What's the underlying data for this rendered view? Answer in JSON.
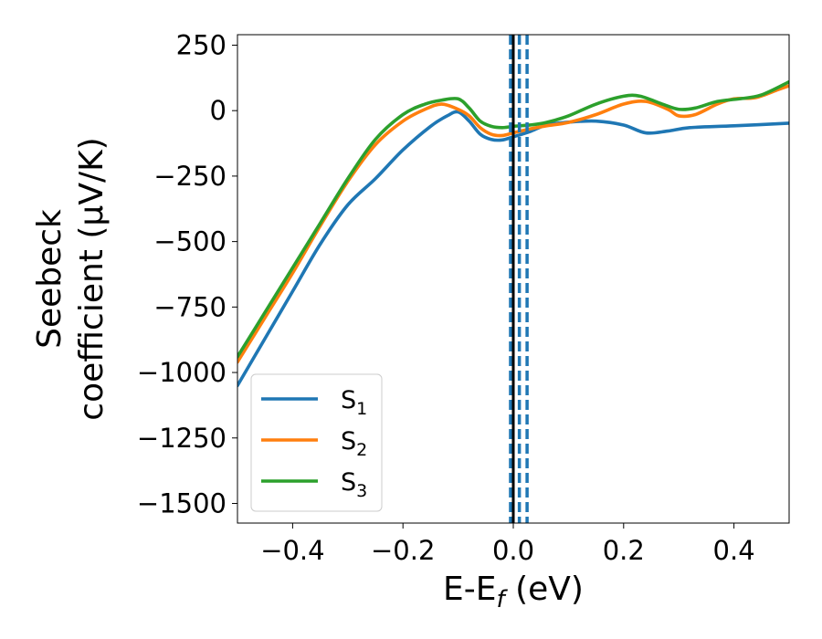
{
  "chart_data": {
    "type": "line",
    "title": "",
    "xlabel": {
      "main": "E-E",
      "sub": "f",
      "unit": " (eV)"
    },
    "ylabel": {
      "line1": "Seebeck",
      "line2": "coefficient  (μV/K)"
    },
    "xlim": [
      -0.5,
      0.5
    ],
    "ylim": [
      -1575,
      290
    ],
    "xticks": [
      -0.4,
      -0.2,
      0.0,
      0.2,
      0.4
    ],
    "xtick_labels": [
      "−0.4",
      "−0.2",
      "0.0",
      "0.2",
      "0.4"
    ],
    "yticks": [
      250,
      0,
      -250,
      -500,
      -750,
      -1000,
      -1250,
      -1500
    ],
    "ytick_labels": [
      "250",
      "0",
      "−250",
      "−500",
      "−750",
      "−1000",
      "−1250",
      "−1500"
    ],
    "grid": false,
    "legend_position": "lower-left",
    "series": [
      {
        "name": "S1",
        "label_main": "S",
        "label_sub": "1",
        "color": "#1f77b4",
        "points": [
          [
            -0.5,
            -1050
          ],
          [
            -0.45,
            -870
          ],
          [
            -0.4,
            -690
          ],
          [
            -0.35,
            -510
          ],
          [
            -0.3,
            -360
          ],
          [
            -0.25,
            -260
          ],
          [
            -0.2,
            -150
          ],
          [
            -0.15,
            -60
          ],
          [
            -0.12,
            -20
          ],
          [
            -0.1,
            -5
          ],
          [
            -0.08,
            -40
          ],
          [
            -0.06,
            -90
          ],
          [
            -0.04,
            -110
          ],
          [
            -0.02,
            -112
          ],
          [
            0.0,
            -100
          ],
          [
            0.03,
            -80
          ],
          [
            0.06,
            -55
          ],
          [
            0.1,
            -44
          ],
          [
            0.15,
            -40
          ],
          [
            0.2,
            -55
          ],
          [
            0.24,
            -85
          ],
          [
            0.28,
            -78
          ],
          [
            0.32,
            -65
          ],
          [
            0.4,
            -58
          ],
          [
            0.5,
            -48
          ]
        ]
      },
      {
        "name": "S2",
        "label_main": "S",
        "label_sub": "2",
        "color": "#ff7f0e",
        "points": [
          [
            -0.5,
            -960
          ],
          [
            -0.45,
            -790
          ],
          [
            -0.4,
            -620
          ],
          [
            -0.35,
            -440
          ],
          [
            -0.3,
            -270
          ],
          [
            -0.25,
            -130
          ],
          [
            -0.2,
            -40
          ],
          [
            -0.16,
            5
          ],
          [
            -0.13,
            25
          ],
          [
            -0.1,
            5
          ],
          [
            -0.08,
            -20
          ],
          [
            -0.06,
            -65
          ],
          [
            -0.04,
            -90
          ],
          [
            -0.02,
            -95
          ],
          [
            0.0,
            -85
          ],
          [
            0.03,
            -70
          ],
          [
            0.06,
            -58
          ],
          [
            0.1,
            -45
          ],
          [
            0.15,
            -15
          ],
          [
            0.2,
            25
          ],
          [
            0.24,
            35
          ],
          [
            0.28,
            5
          ],
          [
            0.3,
            -20
          ],
          [
            0.33,
            -15
          ],
          [
            0.37,
            25
          ],
          [
            0.4,
            45
          ],
          [
            0.44,
            50
          ],
          [
            0.48,
            80
          ],
          [
            0.5,
            95
          ]
        ]
      },
      {
        "name": "S3",
        "label_main": "S",
        "label_sub": "3",
        "color": "#2ca02c",
        "points": [
          [
            -0.5,
            -940
          ],
          [
            -0.45,
            -770
          ],
          [
            -0.4,
            -600
          ],
          [
            -0.35,
            -430
          ],
          [
            -0.3,
            -260
          ],
          [
            -0.25,
            -110
          ],
          [
            -0.2,
            -15
          ],
          [
            -0.16,
            25
          ],
          [
            -0.13,
            40
          ],
          [
            -0.1,
            45
          ],
          [
            -0.08,
            10
          ],
          [
            -0.06,
            -40
          ],
          [
            -0.04,
            -60
          ],
          [
            -0.02,
            -65
          ],
          [
            0.0,
            -60
          ],
          [
            0.03,
            -55
          ],
          [
            0.06,
            -45
          ],
          [
            0.1,
            -20
          ],
          [
            0.15,
            25
          ],
          [
            0.2,
            55
          ],
          [
            0.23,
            55
          ],
          [
            0.27,
            25
          ],
          [
            0.3,
            5
          ],
          [
            0.33,
            10
          ],
          [
            0.37,
            35
          ],
          [
            0.41,
            45
          ],
          [
            0.45,
            60
          ],
          [
            0.5,
            110
          ]
        ]
      }
    ],
    "vlines": [
      {
        "x": -0.005,
        "style": "dashed",
        "color": "#1f77b4"
      },
      {
        "x": 0.011,
        "style": "dashed",
        "color": "#1f77b4"
      },
      {
        "x": 0.025,
        "style": "dashed",
        "color": "#1f77b4"
      },
      {
        "x": 0.0,
        "style": "solid",
        "color": "#000000"
      }
    ]
  }
}
